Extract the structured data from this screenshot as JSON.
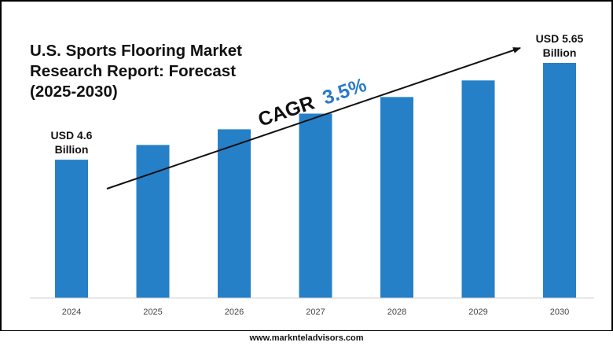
{
  "title": "U.S. Sports Flooring Market\nResearch Report: Forecast\n(2025-2030)",
  "footer": "www.marknteladvisors.com",
  "colors": {
    "bar": "#2680c8",
    "cagr_value": "#2b7bc9",
    "text": "#111111",
    "border": "#000000"
  },
  "cagr": {
    "label": "CAGR",
    "value": "3.5%"
  },
  "chart_data": {
    "type": "bar",
    "title": "U.S. Sports Flooring Market Research Report: Forecast (2025-2030)",
    "xlabel": "",
    "ylabel": "",
    "categories": [
      "2024",
      "2025",
      "2026",
      "2027",
      "2028",
      "2029",
      "2030"
    ],
    "values": [
      4.6,
      4.76,
      4.93,
      5.1,
      5.28,
      5.46,
      5.65
    ],
    "value_unit": "USD Billion",
    "ylim": [
      3.1,
      5.65
    ],
    "grid": false,
    "legend": "none",
    "data_labels": [
      {
        "index": 0,
        "lines": [
          "USD 4.6",
          "Billion"
        ]
      },
      {
        "index": 6,
        "lines": [
          "USD 5.65",
          "Billion"
        ]
      }
    ]
  }
}
